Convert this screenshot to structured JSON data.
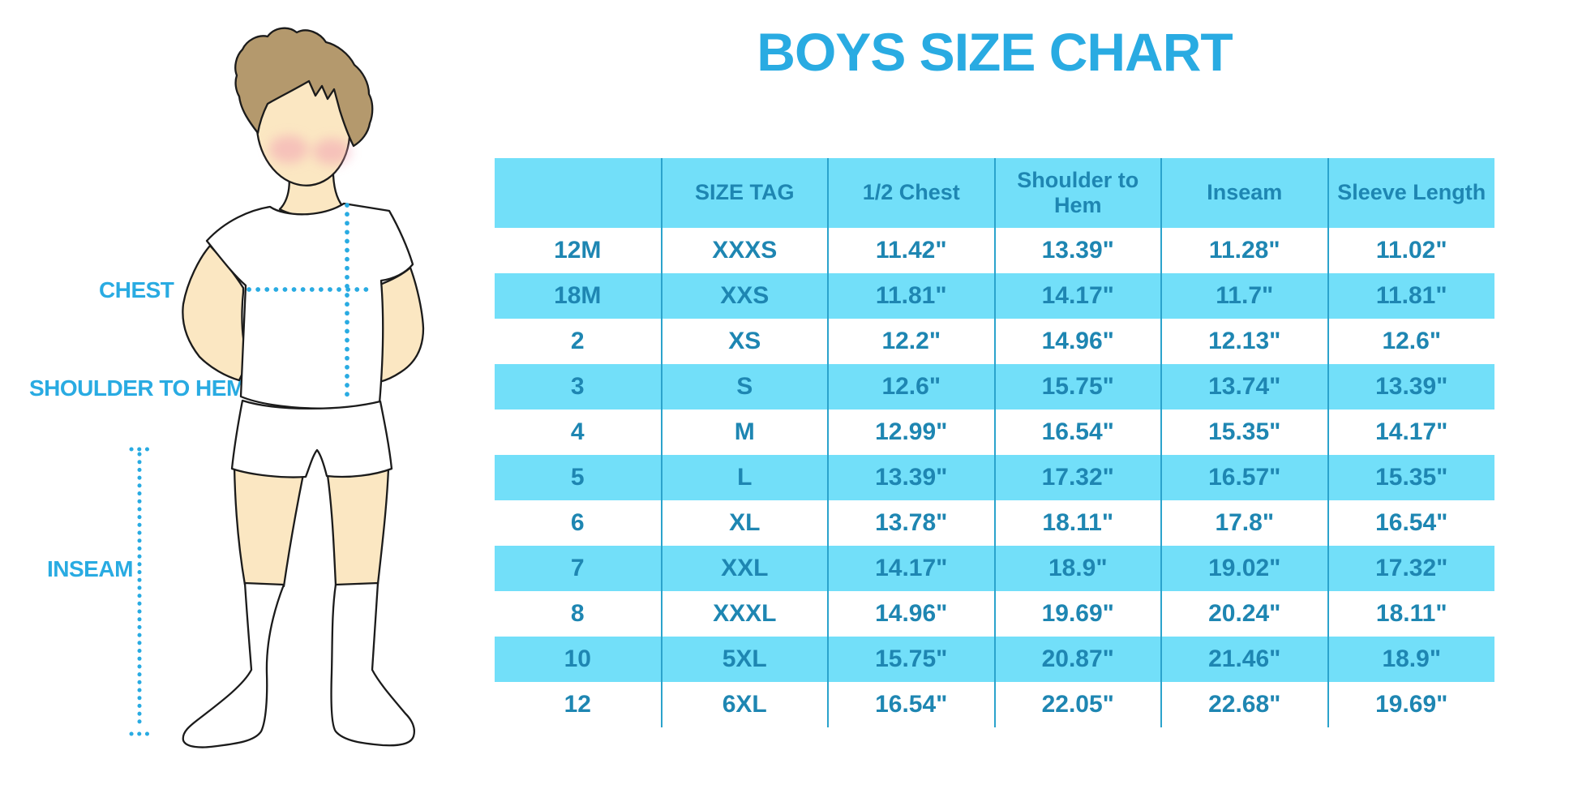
{
  "title": "BOYS SIZE CHART",
  "measurement_labels": {
    "chest": "CHEST",
    "shoulder_to_hem": "SHOULDER TO HEM",
    "inseam": "INSEAM"
  },
  "colors": {
    "accent_blue": "#29ABE2",
    "row_cyan": "#72DFF9",
    "table_text": "#1E86B2",
    "grid_line": "#2BA3CC",
    "hair": "#B4996D",
    "skin": "#FBE7C2",
    "blush": "#F2A3B3"
  },
  "chart_data": {
    "type": "table",
    "title": "BOYS SIZE CHART",
    "columns": [
      "",
      "SIZE TAG",
      "1/2 Chest",
      "Shoulder to Hem",
      "Inseam",
      "Sleeve Length"
    ],
    "rows": [
      [
        "12M",
        "XXXS",
        "11.42\"",
        "13.39\"",
        "11.28\"",
        "11.02\""
      ],
      [
        "18M",
        "XXS",
        "11.81\"",
        "14.17\"",
        "11.7\"",
        "11.81\""
      ],
      [
        "2",
        "XS",
        "12.2\"",
        "14.96\"",
        "12.13\"",
        "12.6\""
      ],
      [
        "3",
        "S",
        "12.6\"",
        "15.75\"",
        "13.74\"",
        "13.39\""
      ],
      [
        "4",
        "M",
        "12.99\"",
        "16.54\"",
        "15.35\"",
        "14.17\""
      ],
      [
        "5",
        "L",
        "13.39\"",
        "17.32\"",
        "16.57\"",
        "15.35\""
      ],
      [
        "6",
        "XL",
        "13.78\"",
        "18.11\"",
        "17.8\"",
        "16.54\""
      ],
      [
        "7",
        "XXL",
        "14.17\"",
        "18.9\"",
        "19.02\"",
        "17.32\""
      ],
      [
        "8",
        "XXXL",
        "14.96\"",
        "19.69\"",
        "20.24\"",
        "18.11\""
      ],
      [
        "10",
        "5XL",
        "15.75\"",
        "20.87\"",
        "21.46\"",
        "18.9\""
      ],
      [
        "12",
        "6XL",
        "16.54\"",
        "22.05\"",
        "22.68\"",
        "19.69\""
      ]
    ]
  }
}
